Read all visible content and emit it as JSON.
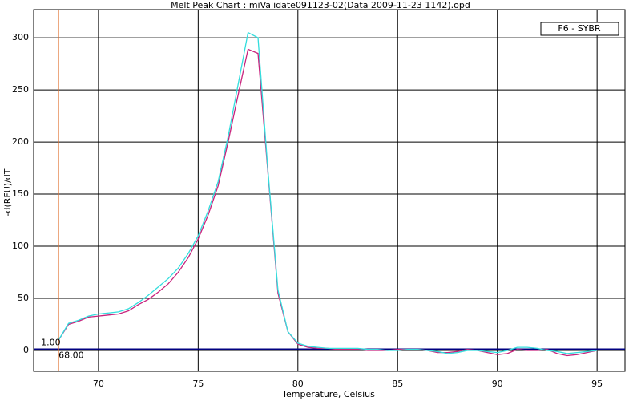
{
  "chart_data": {
    "type": "line",
    "title": "Melt Peak Chart : miValidate091123-02(Data 2009-11-23 1142).opd",
    "xlabel": "Temperature, Celsius",
    "ylabel": "-d(RFU)/dT",
    "legend_title": "F6 - SYBR",
    "x": [
      68,
      68.5,
      69,
      69.5,
      70,
      70.5,
      71,
      71.5,
      72,
      72.5,
      73,
      73.5,
      74,
      74.5,
      75,
      75.5,
      76,
      76.5,
      77,
      77.5,
      78,
      78.5,
      79,
      79.5,
      80,
      80.5,
      81,
      81.5,
      82,
      82.5,
      83,
      83.5,
      84,
      84.5,
      85,
      85.5,
      86,
      86.5,
      87,
      87.5,
      88,
      88.5,
      89,
      89.5,
      90,
      90.5,
      91,
      91.5,
      92,
      92.5,
      93,
      93.5,
      94,
      94.5,
      95
    ],
    "series": [
      {
        "color": "#c8237d",
        "values": [
          10,
          25,
          28,
          32,
          33,
          34,
          35,
          38,
          44,
          49,
          56,
          64,
          75,
          89,
          107,
          130,
          158,
          200,
          245,
          289,
          285,
          170,
          55,
          18,
          6,
          3,
          2,
          2,
          1,
          1,
          1,
          0,
          0,
          0,
          1,
          1,
          1,
          0,
          -2,
          -2,
          -1,
          1,
          0,
          -2,
          -4,
          -3,
          1,
          0,
          0,
          1,
          -3,
          -5,
          -4,
          -2,
          0
        ]
      },
      {
        "color": "#33dddd",
        "values": [
          10,
          26,
          29,
          33,
          35,
          36,
          37,
          40,
          46,
          53,
          61,
          69,
          79,
          93,
          110,
          134,
          162,
          205,
          255,
          305,
          300,
          172,
          58,
          18,
          7,
          4,
          3,
          2,
          2,
          2,
          2,
          1,
          1,
          0,
          0,
          1,
          1,
          0,
          -1,
          -3,
          -2,
          0,
          0,
          -1,
          -2,
          0,
          3,
          3,
          2,
          0,
          -1,
          -3,
          -2,
          -1,
          0
        ]
      }
    ],
    "threshold": {
      "value": 1,
      "label": "1.00",
      "color": "#000080"
    },
    "cursor_x": {
      "value": 68,
      "label": "68.00",
      "color": "#e07030"
    },
    "xlim": [
      66.75,
      96.4
    ],
    "ylim": [
      -20,
      327
    ],
    "xticks": [
      70,
      75,
      80,
      85,
      90,
      95
    ],
    "yticks": [
      0,
      50,
      100,
      150,
      200,
      250,
      300
    ],
    "grid": true
  }
}
